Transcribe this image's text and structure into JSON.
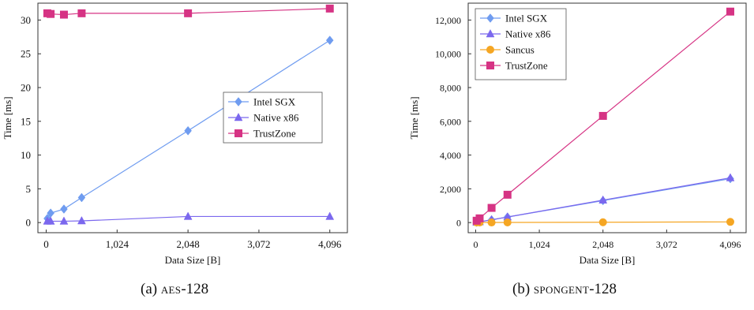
{
  "chart_data": [
    {
      "type": "line",
      "xlabel": "Data Size [B]",
      "ylabel": "Time [ms]",
      "xlim": [
        -120,
        4350
      ],
      "ylim": [
        -1.5,
        32.5
      ],
      "x_ticks": [
        0,
        1024,
        2048,
        3072,
        4096
      ],
      "x_tick_labels": [
        "0",
        "1,024",
        "2,048",
        "3,072",
        "4,096"
      ],
      "y_ticks": [
        0,
        5,
        10,
        15,
        20,
        25,
        30
      ],
      "y_tick_labels": [
        "0",
        "5",
        "10",
        "15",
        "20",
        "25",
        "30"
      ],
      "grid": false,
      "legend_position": "center-right",
      "series": [
        {
          "name": "Intel SGX",
          "color": "#6f9cf0",
          "marker": "diamond",
          "x": [
            16,
            64,
            256,
            512,
            2048,
            4096
          ],
          "y": [
            0.6,
            1.4,
            2.0,
            3.7,
            13.6,
            27.0
          ]
        },
        {
          "name": "Native x86",
          "color": "#7b68ee",
          "marker": "triangle",
          "x": [
            16,
            64,
            256,
            512,
            2048,
            4096
          ],
          "y": [
            0.2,
            0.2,
            0.2,
            0.25,
            0.9,
            0.9
          ]
        },
        {
          "name": "TrustZone",
          "color": "#d63384",
          "marker": "square",
          "x": [
            16,
            64,
            256,
            512,
            2048,
            4096
          ],
          "y": [
            31.0,
            30.9,
            30.8,
            31.0,
            31.0,
            31.7
          ]
        }
      ]
    },
    {
      "type": "line",
      "xlabel": "Data Size [B]",
      "ylabel": "Time [ms]",
      "xlim": [
        -120,
        4350
      ],
      "ylim": [
        -600,
        13000
      ],
      "x_ticks": [
        0,
        1024,
        2048,
        3072,
        4096
      ],
      "x_tick_labels": [
        "0",
        "1,024",
        "2,048",
        "3,072",
        "4,096"
      ],
      "y_ticks": [
        0,
        2000,
        4000,
        6000,
        8000,
        10000,
        12000
      ],
      "y_tick_labels": [
        "0",
        "2,000",
        "4,000",
        "6,000",
        "8,000",
        "10,000",
        "12,000"
      ],
      "grid": false,
      "legend_position": "top-left",
      "series": [
        {
          "name": "Intel SGX",
          "color": "#6f9cf0",
          "marker": "diamond",
          "x": [
            16,
            64,
            256,
            512,
            2048,
            4096
          ],
          "y": [
            15,
            45,
            160,
            330,
            1300,
            2600
          ]
        },
        {
          "name": "Native x86",
          "color": "#7b68ee",
          "marker": "triangle",
          "x": [
            16,
            64,
            256,
            512,
            2048,
            4096
          ],
          "y": [
            15,
            45,
            165,
            330,
            1330,
            2650
          ]
        },
        {
          "name": "Sancus",
          "color": "#f5a623",
          "marker": "circle",
          "x": [
            16,
            64,
            256,
            512,
            2048,
            4096
          ],
          "y": [
            5,
            5,
            6,
            8,
            20,
            40
          ]
        },
        {
          "name": "TrustZone",
          "color": "#d63384",
          "marker": "square",
          "x": [
            16,
            64,
            256,
            512,
            2048,
            4096
          ],
          "y": [
            110,
            250,
            870,
            1650,
            6320,
            12500
          ]
        }
      ]
    }
  ],
  "captions": {
    "a_prefix": "(a) ",
    "a_name": "aes",
    "a_suffix": "-128",
    "b_prefix": "(b) ",
    "b_name": "spongent",
    "b_suffix": "-128"
  }
}
